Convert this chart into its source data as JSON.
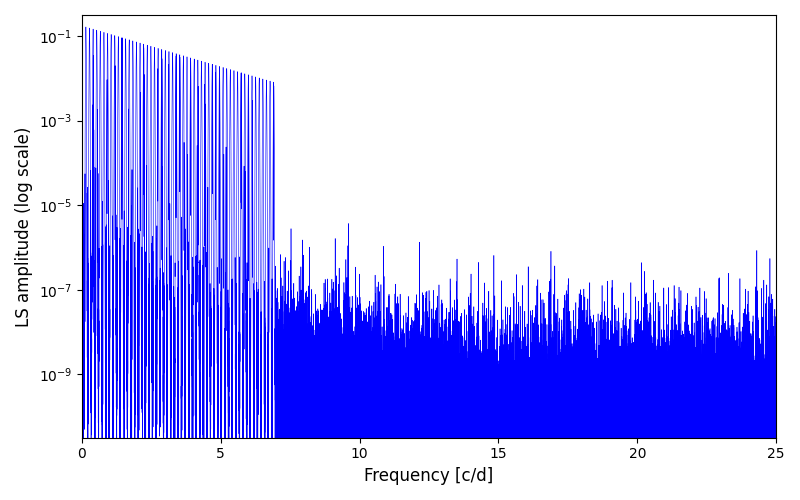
{
  "xlabel": "Frequency [c/d]",
  "ylabel": "LS amplitude (log scale)",
  "xlim": [
    0,
    25
  ],
  "ylim_log": [
    -10.5,
    -0.5
  ],
  "line_color": "#0000ff",
  "background_color": "#ffffff",
  "figsize": [
    8.0,
    5.0
  ],
  "dpi": 100,
  "n_points": 50000,
  "freq_max": 25.0,
  "seed": 12345
}
